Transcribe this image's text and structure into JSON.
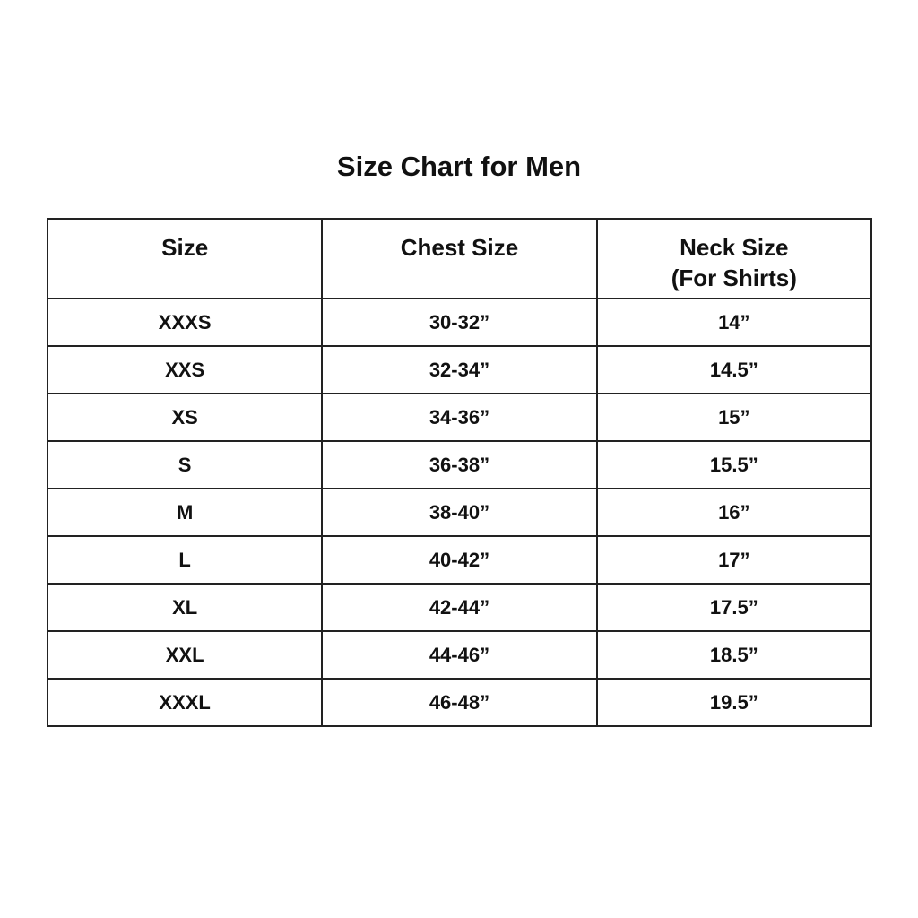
{
  "title": "Size Chart for Men",
  "columns": [
    {
      "line1": "Size",
      "line2": ""
    },
    {
      "line1": "Chest Size",
      "line2": ""
    },
    {
      "line1": "Neck Size",
      "line2": "(For Shirts)"
    }
  ],
  "rows": [
    [
      "XXXS",
      "30-32”",
      "14”"
    ],
    [
      "XXS",
      "32-34”",
      "14.5”"
    ],
    [
      "XS",
      "34-36”",
      "15”"
    ],
    [
      "S",
      "36-38”",
      "15.5”"
    ],
    [
      "M",
      "38-40”",
      "16”"
    ],
    [
      "L",
      "40-42”",
      "17”"
    ],
    [
      "XL",
      "42-44”",
      "17.5”"
    ],
    [
      "XXL",
      "44-46”",
      "18.5”"
    ],
    [
      "XXXL",
      "46-48”",
      "19.5”"
    ]
  ]
}
